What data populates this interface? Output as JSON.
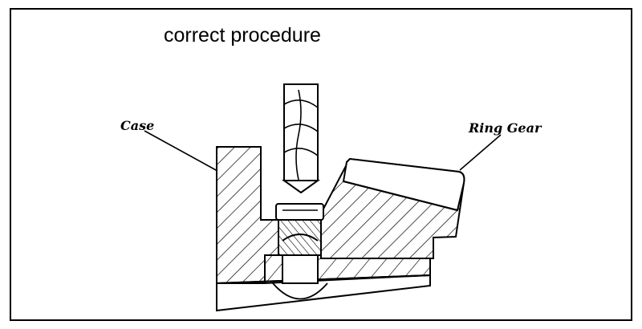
{
  "diagram": {
    "title": "correct procedure",
    "labels": {
      "case": "Case",
      "ring_gear": "Ring Gear"
    },
    "parts": [
      "drill-bit",
      "case",
      "ring-gear",
      "bolt",
      "base-plate"
    ]
  }
}
